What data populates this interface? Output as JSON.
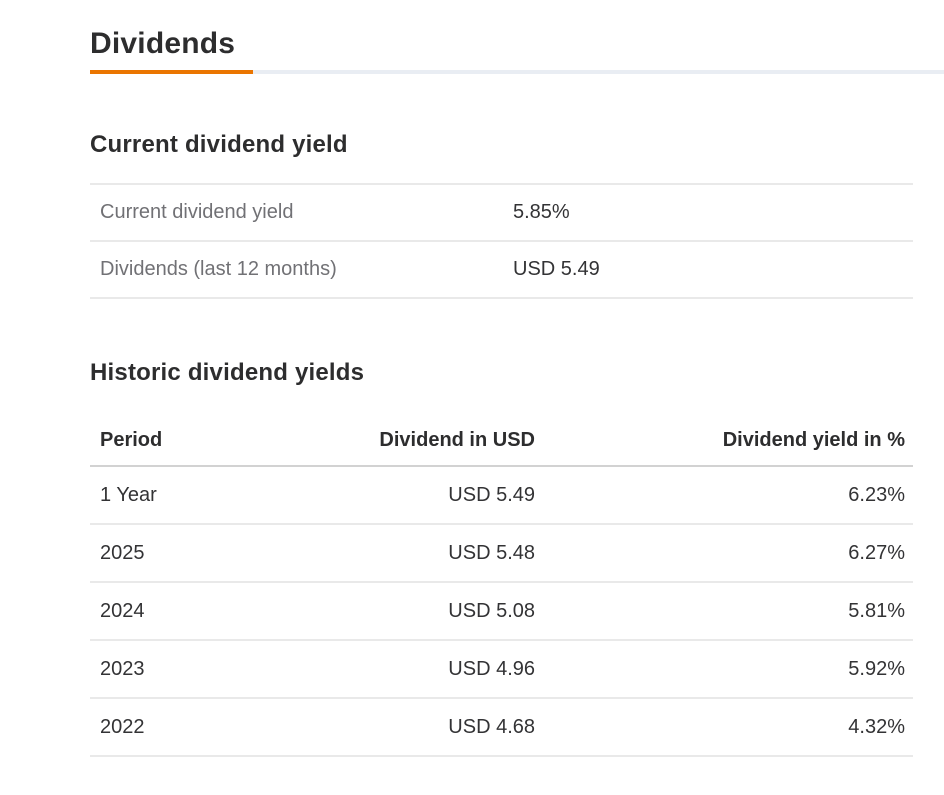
{
  "page": {
    "title": "Dividends"
  },
  "colors": {
    "accent_orange": "#ea7500",
    "title_rule_gray": "#e9edf3",
    "row_divider": "#e9e9e9",
    "header_divider": "#d2d2d2",
    "heading_text": "#2d2d2e",
    "label_gray": "#717175",
    "value_text": "#333335"
  },
  "current_section": {
    "heading": "Current dividend yield",
    "rows": [
      {
        "label": "Current dividend yield",
        "value": "5.85%"
      },
      {
        "label": "Dividends (last 12 months)",
        "value": "USD 5.49"
      }
    ]
  },
  "historic_section": {
    "heading": "Historic dividend yields",
    "columns": [
      "Period",
      "Dividend in USD",
      "Dividend yield in %"
    ],
    "rows": [
      {
        "period": "1 Year",
        "dividend": "USD 5.49",
        "yield": "6.23%"
      },
      {
        "period": "2025",
        "dividend": "USD 5.48",
        "yield": "6.27%"
      },
      {
        "period": "2024",
        "dividend": "USD 5.08",
        "yield": "5.81%"
      },
      {
        "period": "2023",
        "dividend": "USD 4.96",
        "yield": "5.92%"
      },
      {
        "period": "2022",
        "dividend": "USD 4.68",
        "yield": "4.32%"
      }
    ]
  }
}
